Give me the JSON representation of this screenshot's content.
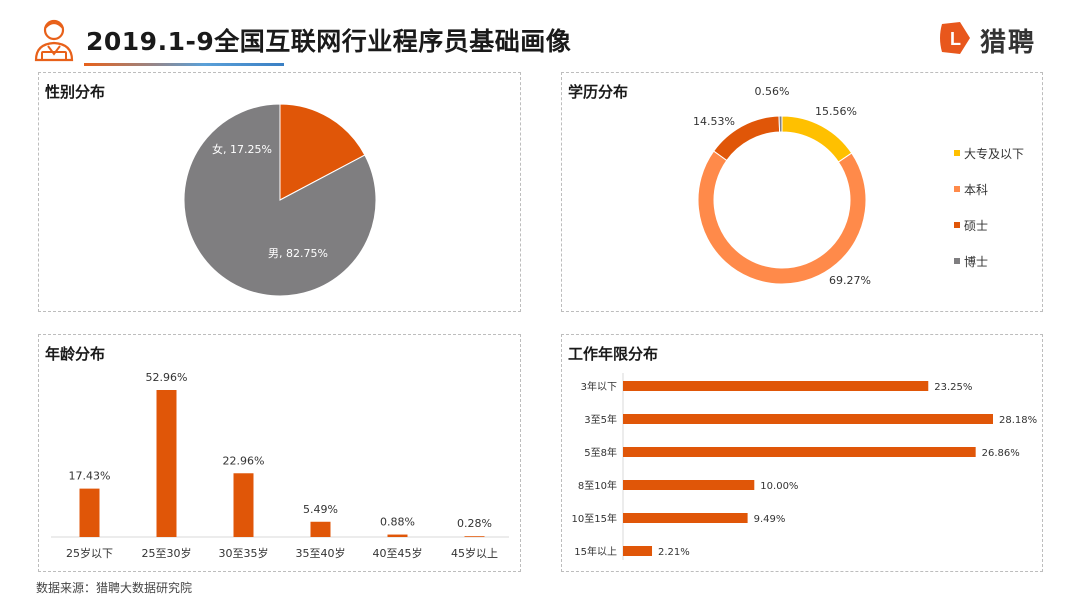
{
  "title": "2019.1-9全国互联网行业程序员基础画像",
  "brand": {
    "name": "猎聘",
    "mark_letter": "L",
    "color": "#e8571c"
  },
  "source": "数据来源：猎聘大数据研究院",
  "colors": {
    "orange": "#e05608",
    "gray": "#7f7e80",
    "yellow": "#ffc000",
    "light_orange": "#ff8a4a"
  },
  "chart_data": [
    {
      "type": "pie",
      "title": "性别分布",
      "slices": [
        {
          "label": "女",
          "value": 17.25,
          "text": "女, 17.25%",
          "color": "#e05608"
        },
        {
          "label": "男",
          "value": 82.75,
          "text": "男, 82.75%",
          "color": "#7f7e80"
        }
      ]
    },
    {
      "type": "pie",
      "title": "学历分布",
      "donut": true,
      "legend_position": "right",
      "slices": [
        {
          "label": "大专及以下",
          "value": 15.56,
          "text": "15.56%",
          "color": "#ffc000"
        },
        {
          "label": "本科",
          "value": 69.27,
          "text": "69.27%",
          "color": "#ff8a4a"
        },
        {
          "label": "硕士",
          "value": 14.53,
          "text": "14.53%",
          "color": "#e05608"
        },
        {
          "label": "博士",
          "value": 0.56,
          "text": "0.56%",
          "color": "#7f7e80"
        }
      ]
    },
    {
      "type": "bar",
      "title": "年龄分布",
      "categories": [
        "25岁以下",
        "25至30岁",
        "30至35岁",
        "35至40岁",
        "40至45岁",
        "45岁以上"
      ],
      "values": [
        17.43,
        52.96,
        22.96,
        5.49,
        0.88,
        0.28
      ],
      "labels": [
        "17.43%",
        "52.96%",
        "22.96%",
        "5.49%",
        "0.88%",
        "0.28%"
      ],
      "color": "#e05608"
    },
    {
      "type": "bar",
      "orientation": "horizontal",
      "title": "工作年限分布",
      "categories": [
        "3年以下",
        "3至5年",
        "5至8年",
        "8至10年",
        "10至15年",
        "15年以上"
      ],
      "values": [
        23.25,
        28.18,
        26.86,
        10.0,
        9.49,
        2.21
      ],
      "labels": [
        "23.25%",
        "28.18%",
        "26.86%",
        "10.00%",
        "9.49%",
        "2.21%"
      ],
      "color": "#e05608"
    }
  ]
}
